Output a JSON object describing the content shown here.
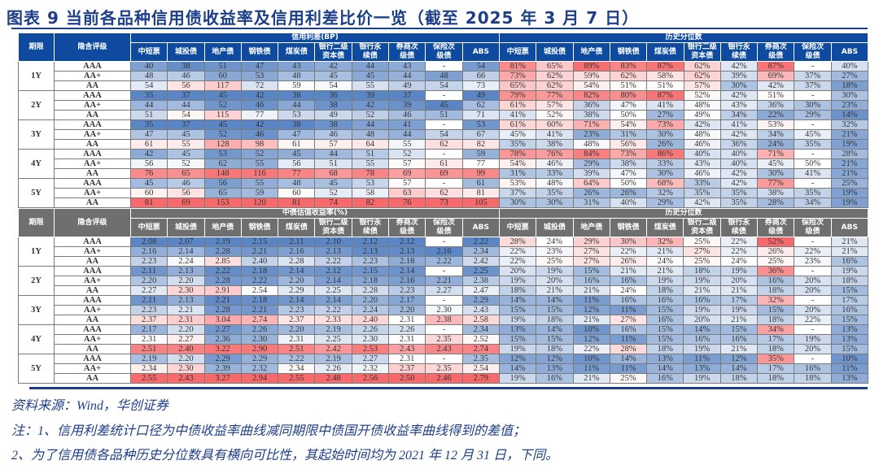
{
  "title": "图表 9   当前各品种信用债收益率及信用利差比价一览（截至 2025 年 3 月 7 日）",
  "columns": {
    "term": "期限",
    "rating": "隐含评级",
    "bond_types": [
      "中短票",
      "城投债",
      "地产债",
      "钢铁债",
      "煤炭债",
      "银行二级资本债",
      "银行永续债",
      "券商次级债",
      "保险次级债",
      "ABS"
    ],
    "bond_types_display": [
      [
        "中短票"
      ],
      [
        "城投债"
      ],
      [
        "地产债"
      ],
      [
        "钢铁债"
      ],
      [
        "煤炭债"
      ],
      [
        "银行二级",
        "资本债"
      ],
      [
        "银行永",
        "续债"
      ],
      [
        "券商次",
        "级债"
      ],
      [
        "保险次",
        "级债"
      ],
      [
        "ABS"
      ]
    ]
  },
  "spread_table": {
    "group_left": "信用利差(BP)",
    "group_right": "历史分位数",
    "terms": [
      "1Y",
      "2Y",
      "3Y",
      "4Y",
      "5Y"
    ],
    "ratings": [
      "AAA",
      "AA+",
      "AA"
    ],
    "rows": [
      {
        "term": "1Y",
        "rating": "AAA",
        "values": [
          "40",
          "38",
          "51",
          "47",
          "43",
          "42",
          "44",
          "43",
          "-",
          "54"
        ],
        "pct": [
          "81%",
          "65%",
          "89%",
          "83%",
          "87%",
          "62%",
          "42%",
          "87%",
          "-",
          "40%"
        ]
      },
      {
        "term": "1Y",
        "rating": "AA+",
        "values": [
          "48",
          "46",
          "60",
          "53",
          "48",
          "45",
          "45",
          "44",
          "48",
          "66"
        ],
        "pct": [
          "73%",
          "62%",
          "59%",
          "62%",
          "58%",
          "62%",
          "39%",
          "69%",
          "37%",
          "27%"
        ]
      },
      {
        "term": "1Y",
        "rating": "AA",
        "values": [
          "54",
          "56",
          "117",
          "72",
          "59",
          "54",
          "55",
          "49",
          "54",
          "73"
        ],
        "pct": [
          "65%",
          "62%",
          "54%",
          "51%",
          "51%",
          "57%",
          "30%",
          "42%",
          "37%",
          "18%"
        ]
      },
      {
        "term": "2Y",
        "rating": "AAA",
        "values": [
          "35",
          "37",
          "45",
          "42",
          "38",
          "36",
          "39",
          "37",
          "-",
          "49"
        ],
        "pct": [
          "79%",
          "77%",
          "82%",
          "80%",
          "87%",
          "52%",
          "42%",
          "51%",
          "-",
          "30%"
        ]
      },
      {
        "term": "2Y",
        "rating": "AA+",
        "values": [
          "44",
          "44",
          "52",
          "46",
          "44",
          "38",
          "42",
          "39",
          "45",
          "62"
        ],
        "pct": [
          "61%",
          "57%",
          "36%",
          "47%",
          "41%",
          "48%",
          "43%",
          "36%",
          "30%",
          "23%"
        ]
      },
      {
        "term": "2Y",
        "rating": "AA",
        "values": [
          "51",
          "54",
          "115",
          "77",
          "53",
          "49",
          "52",
          "46",
          "51",
          "71"
        ],
        "pct": [
          "41%",
          "52%",
          "38%",
          "50%",
          "27%",
          "49%",
          "34%",
          "22%",
          "29%",
          "14%"
        ]
      },
      {
        "term": "3Y",
        "rating": "AAA",
        "values": [
          "35",
          "37",
          "45",
          "42",
          "38",
          "38",
          "44",
          "41",
          "-",
          "53"
        ],
        "pct": [
          "61%",
          "60%",
          "71%",
          "54%",
          "73%",
          "42%",
          "41%",
          "53%",
          "-",
          "32%"
        ]
      },
      {
        "term": "3Y",
        "rating": "AA+",
        "values": [
          "47",
          "45",
          "52",
          "46",
          "47",
          "46",
          "48",
          "44",
          "54",
          "67"
        ],
        "pct": [
          "45%",
          "41%",
          "23%",
          "31%",
          "30%",
          "48%",
          "42%",
          "34%",
          "45%",
          "21%"
        ]
      },
      {
        "term": "3Y",
        "rating": "AA",
        "values": [
          "61",
          "55",
          "128",
          "98",
          "61",
          "57",
          "64",
          "55",
          "62",
          "82"
        ],
        "pct": [
          "35%",
          "38%",
          "48%",
          "56%",
          "26%",
          "46%",
          "36%",
          "24%",
          "35%",
          "19%"
        ]
      },
      {
        "term": "4Y",
        "rating": "AAA",
        "values": [
          "42",
          "45",
          "53",
          "52",
          "45",
          "44",
          "51",
          "52",
          "-",
          "59"
        ],
        "pct": [
          "78%",
          "76%",
          "84%",
          "73%",
          "86%",
          "40%",
          "40%",
          "71%",
          "-",
          "28%"
        ]
      },
      {
        "term": "4Y",
        "rating": "AA+",
        "values": [
          "56",
          "52",
          "62",
          "55",
          "56",
          "51",
          "55",
          "57",
          "61",
          "77"
        ],
        "pct": [
          "54%",
          "46%",
          "29%",
          "38%",
          "33%",
          "43%",
          "40%",
          "45%",
          "50%",
          "21%"
        ]
      },
      {
        "term": "4Y",
        "rating": "AA",
        "values": [
          "76",
          "65",
          "148",
          "116",
          "77",
          "68",
          "78",
          "69",
          "69",
          "99"
        ],
        "pct": [
          "31%",
          "33%",
          "39%",
          "47%",
          "30%",
          "46%",
          "42%",
          "30%",
          "41%",
          "21%"
        ]
      },
      {
        "term": "5Y",
        "rating": "AAA",
        "values": [
          "45",
          "46",
          "56",
          "55",
          "48",
          "45",
          "53",
          "57",
          "-",
          "61"
        ],
        "pct": [
          "53%",
          "48%",
          "64%",
          "50%",
          "68%",
          "33%",
          "42%",
          "77%",
          "-",
          "25%"
        ]
      },
      {
        "term": "5Y",
        "rating": "AA+",
        "values": [
          "60",
          "56",
          "65",
          "59",
          "60",
          "52",
          "58",
          "63",
          "62",
          "81"
        ],
        "pct": [
          "37%",
          "35%",
          "26%",
          "26%",
          "32%",
          "35%",
          "35%",
          "38%",
          "35%",
          "19%"
        ]
      },
      {
        "term": "5Y",
        "rating": "AA",
        "values": [
          "81",
          "69",
          "153",
          "120",
          "81",
          "74",
          "82",
          "76",
          "73",
          "105"
        ],
        "pct": [
          "30%",
          "30%",
          "31%",
          "40%",
          "29%",
          "42%",
          "35%",
          "28%",
          "34%",
          "19%"
        ]
      }
    ]
  },
  "yield_table": {
    "group_left": "中债估值收益率(%)",
    "group_right": "历史分位数",
    "rows": [
      {
        "term": "1Y",
        "rating": "AAA",
        "values": [
          "2.08",
          "2.07",
          "2.19",
          "2.15",
          "2.11",
          "2.10",
          "2.12",
          "2.12",
          "-",
          "2.22"
        ],
        "pct": [
          "28%",
          "24%",
          "29%",
          "30%",
          "32%",
          "25%",
          "22%",
          "52%",
          "-",
          "21%"
        ]
      },
      {
        "term": "1Y",
        "rating": "AA+",
        "values": [
          "2.16",
          "2.14",
          "2.28",
          "2.21",
          "2.16",
          "2.13",
          "2.13",
          "2.13",
          "2.16",
          "2.34"
        ],
        "pct": [
          "22%",
          "23%",
          "27%",
          "22%",
          "21%",
          "27%",
          "22%",
          "26%",
          "22%",
          "21%"
        ]
      },
      {
        "term": "1Y",
        "rating": "AA",
        "values": [
          "2.23",
          "2.24",
          "2.85",
          "2.40",
          "2.28",
          "2.22",
          "2.23",
          "2.18",
          "2.22",
          "2.42"
        ],
        "pct": [
          "22%",
          "25%",
          "27%",
          "26%",
          "24%",
          "25%",
          "24%",
          "25%",
          "23%",
          "16%"
        ]
      },
      {
        "term": "2Y",
        "rating": "AAA",
        "values": [
          "2.11",
          "2.13",
          "2.22",
          "2.18",
          "2.14",
          "2.12",
          "2.15",
          "2.14",
          "-",
          "2.25"
        ],
        "pct": [
          "20%",
          "19%",
          "15%",
          "21%",
          "21%",
          "18%",
          "19%",
          "36%",
          "-",
          "19%"
        ]
      },
      {
        "term": "2Y",
        "rating": "AA+",
        "values": [
          "2.20",
          "2.20",
          "2.28",
          "2.22",
          "2.20",
          "2.14",
          "2.18",
          "2.16",
          "2.21",
          "2.38"
        ],
        "pct": [
          "19%",
          "20%",
          "16%",
          "16%",
          "19%",
          "19%",
          "20%",
          "16%",
          "20%",
          "18%"
        ]
      },
      {
        "term": "2Y",
        "rating": "AA",
        "values": [
          "2.27",
          "2.30",
          "2.91",
          "2.54",
          "2.29",
          "2.25",
          "2.28",
          "2.23",
          "2.27",
          "2.47"
        ],
        "pct": [
          "18%",
          "21%",
          "21%",
          "24%",
          "18%",
          "21%",
          "21%",
          "18%",
          "20%",
          "15%"
        ]
      },
      {
        "term": "3Y",
        "rating": "AAA",
        "values": [
          "2.11",
          "2.13",
          "2.21",
          "2.18",
          "2.14",
          "2.14",
          "2.20",
          "2.17",
          "-",
          "2.29"
        ],
        "pct": [
          "14%",
          "14%",
          "11%",
          "16%",
          "16%",
          "16%",
          "17%",
          "32%",
          "-",
          "17%"
        ]
      },
      {
        "term": "3Y",
        "rating": "AA+",
        "values": [
          "2.23",
          "2.21",
          "2.28",
          "2.21",
          "2.23",
          "2.22",
          "2.24",
          "2.20",
          "2.30",
          "2.43"
        ],
        "pct": [
          "15%",
          "15%",
          "12%",
          "11%",
          "15%",
          "19%",
          "19%",
          "15%",
          "20%",
          "16%"
        ]
      },
      {
        "term": "3Y",
        "rating": "AA",
        "values": [
          "2.37",
          "2.31",
          "3.04",
          "2.74",
          "2.37",
          "2.33",
          "2.40",
          "2.31",
          "2.38",
          "2.58"
        ],
        "pct": [
          "19%",
          "18%",
          "21%",
          "27%",
          "16%",
          "20%",
          "21%",
          "18%",
          "22%",
          "15%"
        ]
      },
      {
        "term": "4Y",
        "rating": "AAA",
        "values": [
          "2.17",
          "2.20",
          "2.27",
          "2.26",
          "2.20",
          "2.19",
          "2.26",
          "2.26",
          "-",
          "2.34"
        ],
        "pct": [
          "13%",
          "14%",
          "10%",
          "16%",
          "15%",
          "14%",
          "15%",
          "34%",
          "-",
          "13%"
        ]
      },
      {
        "term": "4Y",
        "rating": "AA+",
        "values": [
          "2.31",
          "2.27",
          "2.36",
          "2.30",
          "2.31",
          "2.25",
          "2.30",
          "2.31",
          "2.35",
          "2.52"
        ],
        "pct": [
          "15%",
          "15%",
          "12%",
          "11%",
          "15%",
          "16%",
          "16%",
          "17%",
          "19%",
          "13%"
        ]
      },
      {
        "term": "4Y",
        "rating": "AA",
        "values": [
          "2.51",
          "2.40",
          "3.22",
          "2.90",
          "2.51",
          "2.42",
          "2.53",
          "2.43",
          "2.43",
          "2.74"
        ],
        "pct": [
          "19%",
          "18%",
          "22%",
          "28%",
          "18%",
          "19%",
          "21%",
          "18%",
          "20%",
          "15%"
        ]
      },
      {
        "term": "5Y",
        "rating": "AAA",
        "values": [
          "2.19",
          "2.20",
          "2.29",
          "2.29",
          "2.22",
          "2.19",
          "2.27",
          "2.31",
          "-",
          "2.35"
        ],
        "pct": [
          "12%",
          "12%",
          "10%",
          "14%",
          "13%",
          "11%",
          "12%",
          "35%",
          "-",
          "10%"
        ]
      },
      {
        "term": "5Y",
        "rating": "AA+",
        "values": [
          "2.34",
          "2.30",
          "2.39",
          "2.32",
          "2.34",
          "2.26",
          "2.32",
          "2.37",
          "2.35",
          "2.54"
        ],
        "pct": [
          "14%",
          "13%",
          "11%",
          "11%",
          "14%",
          "13%",
          "14%",
          "17%",
          "16%",
          "11%"
        ]
      },
      {
        "term": "5Y",
        "rating": "AA",
        "values": [
          "2.55",
          "2.43",
          "3.27",
          "2.94",
          "2.55",
          "2.48",
          "2.56",
          "2.50",
          "2.46",
          "2.79"
        ],
        "pct": [
          "19%",
          "16%",
          "21%",
          "25%",
          "16%",
          "19%",
          "18%",
          "18%",
          "18%",
          "13%"
        ]
      }
    ]
  },
  "notes": {
    "source": "资料来源：Wind，华创证券",
    "note1": "注：1、信用利差统计口径为中债收益率曲线减同期限中债国开债收益率曲线得到的差值；",
    "note2": "2、为了信用债各品种历史分位数具有横向可比性，其起始时间均为 2021 年 12 月 31 日，下同。"
  },
  "colors": {
    "title": "#1d3f8a",
    "header_blue": "#0e4ba0",
    "header_grey": "#6f6f6f",
    "heat_low": "#5b86c5",
    "heat_mid": "#ffffff",
    "heat_high": "#f8696b"
  }
}
